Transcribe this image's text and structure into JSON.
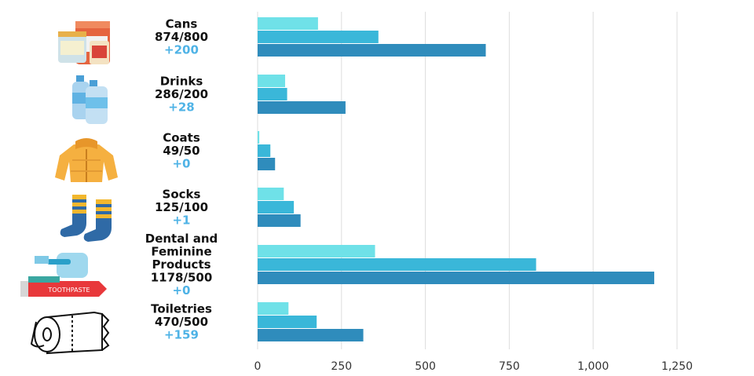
{
  "chart_data": {
    "type": "bar",
    "orientation": "horizontal",
    "grid": true,
    "xlim": [
      0,
      1250
    ],
    "xticks": [
      "0",
      "250",
      "500",
      "750",
      "1,000",
      "1,250"
    ],
    "tick_values": [
      0,
      250,
      500,
      750,
      1000,
      1250
    ],
    "categories": [
      {
        "name": "Cans",
        "ratio": "874/800",
        "delta": "+200",
        "values": [
          180,
          360,
          680
        ],
        "icon": "cans-icon"
      },
      {
        "name": "Drinks",
        "ratio": "286/200",
        "delta": "+28",
        "values": [
          82,
          88,
          262
        ],
        "icon": "water-bottles-icon"
      },
      {
        "name": "Coats",
        "ratio": "49/50",
        "delta": "+0",
        "values": [
          5,
          38,
          52
        ],
        "icon": "coat-icon"
      },
      {
        "name": "Socks",
        "ratio": "125/100",
        "delta": "+1",
        "values": [
          78,
          108,
          128
        ],
        "icon": "socks-icon"
      },
      {
        "name": "Dental and Feminine Products",
        "name_lines": [
          "Dental and",
          "Feminine",
          "Products"
        ],
        "ratio": "1178/500",
        "delta": "+0",
        "values": [
          350,
          830,
          1182
        ],
        "icon": "toothpaste-icon",
        "icon_text": "TOOTHPASTE"
      },
      {
        "name": "Toiletries",
        "ratio": "470/500",
        "delta": "+159",
        "values": [
          92,
          176,
          315
        ],
        "icon": "toilet-paper-icon"
      }
    ],
    "series_colors": [
      "#6fe1e8",
      "#3ab7d9",
      "#2f8cbc"
    ],
    "grid_color": "#dddddd",
    "delta_color": "#4fb3e6"
  }
}
